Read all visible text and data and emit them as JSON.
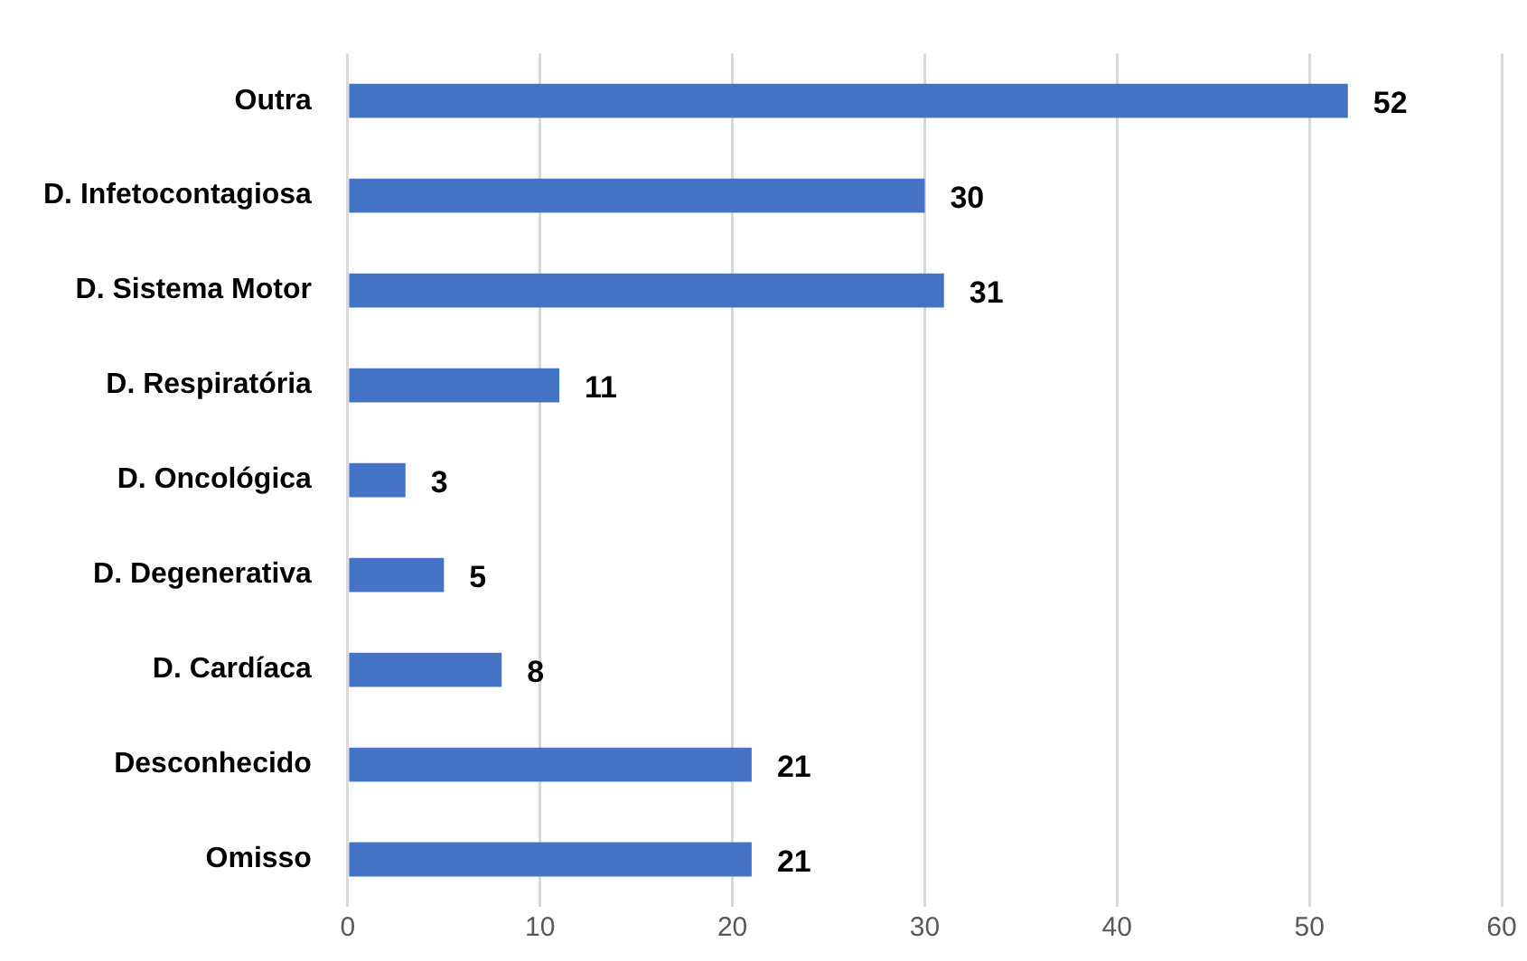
{
  "chart_data": {
    "type": "bar",
    "orientation": "horizontal",
    "categories": [
      "Outra",
      "D. Infetocontagiosa",
      "D. Sistema Motor",
      "D. Respiratória",
      "D. Oncológica",
      "D. Degenerativa",
      "D. Cardíaca",
      "Desconhecido",
      "Omisso"
    ],
    "values": [
      52,
      30,
      31,
      11,
      3,
      5,
      8,
      21,
      21
    ],
    "color": "#4472c4",
    "xlim": [
      0,
      60
    ],
    "xticks": [
      0,
      10,
      20,
      30,
      40,
      50,
      60
    ],
    "grid": "x",
    "legend": false,
    "data_labels": true
  }
}
